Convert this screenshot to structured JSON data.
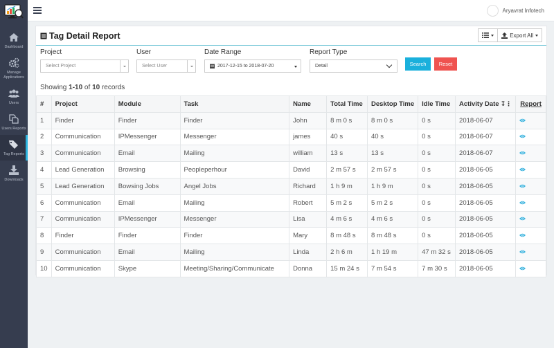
{
  "sidebar": {
    "items": [
      {
        "label": "Dashboard",
        "icon": "home-icon"
      },
      {
        "label": "Manage Applications",
        "icon": "gears-icon"
      },
      {
        "label": "Users",
        "icon": "users-icon"
      },
      {
        "label": "Users Reports",
        "icon": "copy-icon"
      },
      {
        "label": "Tag Reports",
        "icon": "tags-icon",
        "active": true
      },
      {
        "label": "Downloads",
        "icon": "download-icon"
      }
    ]
  },
  "topbar": {
    "username": "Aryavrat Infotech"
  },
  "panel": {
    "title": "Tag Detail Report",
    "export_label": "Export All"
  },
  "filters": {
    "project": {
      "label": "Project",
      "placeholder": "Select Project"
    },
    "user": {
      "label": "User",
      "placeholder": "Select User"
    },
    "date_range": {
      "label": "Date Range",
      "value": "2017-12-15 to 2018-07-20"
    },
    "report_type": {
      "label": "Report Type",
      "value": "Detail"
    },
    "search_label": "Search",
    "reset_label": "Reset"
  },
  "records": {
    "prefix": "Showing ",
    "range": "1-10",
    "of": " of ",
    "total": "10",
    "suffix": " records"
  },
  "table": {
    "headers": [
      "#",
      "Project",
      "Module",
      "Task",
      "Name",
      "Total Time",
      "Desktop Time",
      "Idle Time",
      "Activity Date",
      "Report"
    ],
    "rows": [
      [
        "1",
        "Finder",
        "Finder",
        "Finder",
        "John",
        "8 m 0 s",
        "8 m 0 s",
        "0 s",
        "2018-06-07"
      ],
      [
        "2",
        "Communication",
        "IPMessenger",
        "Messenger",
        "james",
        "40 s",
        "40 s",
        "0 s",
        "2018-06-07"
      ],
      [
        "3",
        "Communication",
        "Email",
        "Mailing",
        "william",
        "13 s",
        "13 s",
        "0 s",
        "2018-06-07"
      ],
      [
        "4",
        "Lead Generation",
        "Browsing",
        "Peopleperhour",
        "David",
        "2 m 57 s",
        "2 m 57 s",
        "0 s",
        "2018-06-05"
      ],
      [
        "5",
        "Lead Generation",
        "Bowsing Jobs",
        "Angel Jobs",
        "Richard",
        "1 h 9 m",
        "1 h 9 m",
        "0 s",
        "2018-06-05"
      ],
      [
        "6",
        "Communication",
        "Email",
        "Mailing",
        "Robert",
        "5 m 2 s",
        "5 m 2 s",
        "0 s",
        "2018-06-05"
      ],
      [
        "7",
        "Communication",
        "IPMessenger",
        "Messenger",
        "Lisa",
        "4 m 6 s",
        "4 m 6 s",
        "0 s",
        "2018-06-05"
      ],
      [
        "8",
        "Finder",
        "Finder",
        "Finder",
        "Mary",
        "8 m 48 s",
        "8 m 48 s",
        "0 s",
        "2018-06-05"
      ],
      [
        "9",
        "Communication",
        "Email",
        "Mailing",
        "Linda",
        "2 h 6 m",
        "1 h 19 m",
        "47 m 32 s",
        "2018-06-05"
      ],
      [
        "10",
        "Communication",
        "Skype",
        "Meeting/Sharing/Communicate",
        "Donna",
        "15 m 24 s",
        "7 m 54 s",
        "7 m 30 s",
        "2018-06-05"
      ]
    ]
  },
  "colors": {
    "sidebar_bg": "#363d4f",
    "accent": "#2bb3de",
    "search_btn": "#1ab0dc",
    "reset_btn": "#ef5350"
  }
}
